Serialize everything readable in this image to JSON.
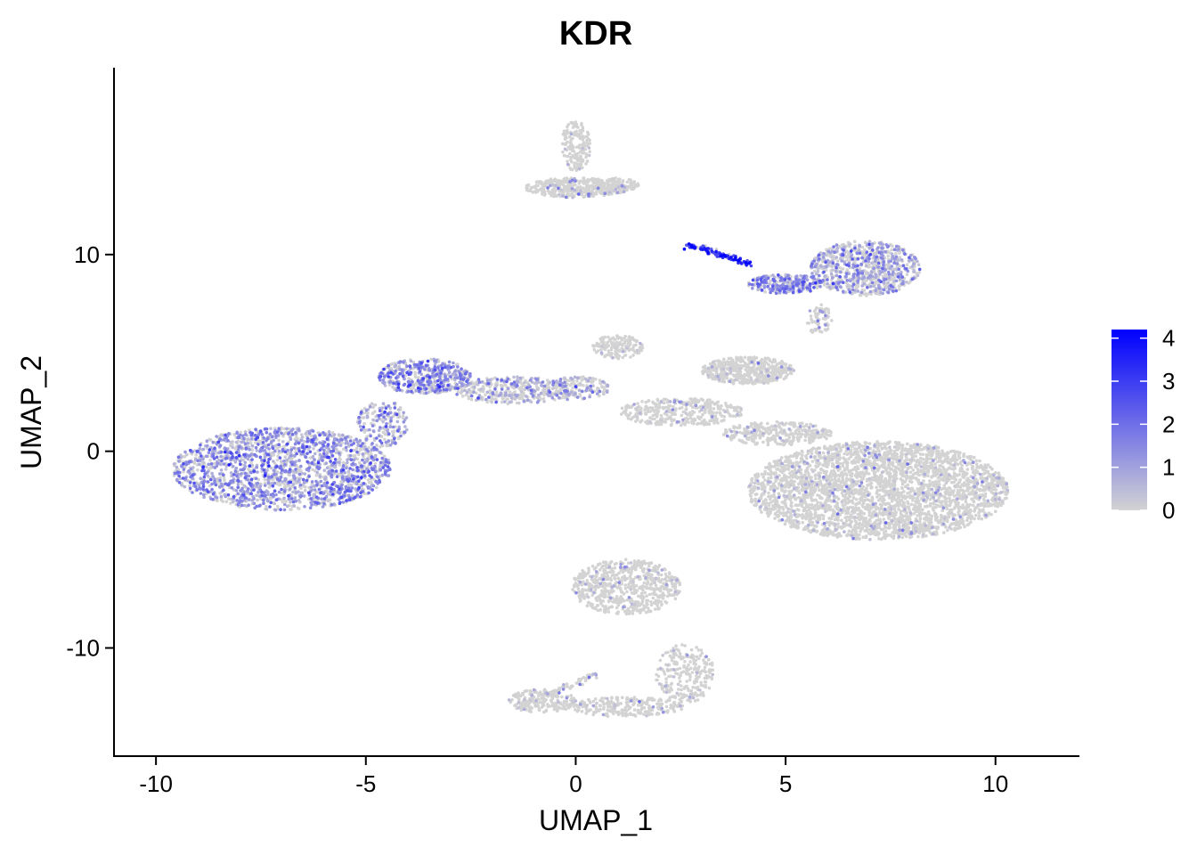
{
  "chart_data": {
    "type": "scatter",
    "title": "KDR",
    "xlabel": "UMAP_1",
    "ylabel": "UMAP_2",
    "xlim": [
      -11,
      12
    ],
    "ylim": [
      -15.5,
      19.5
    ],
    "x_ticks": [
      -10,
      -5,
      0,
      5,
      10
    ],
    "x_tick_labels": [
      "-10",
      "-5",
      "0",
      "5",
      "10"
    ],
    "y_ticks": [
      -10,
      0,
      10
    ],
    "y_tick_labels": [
      "-10",
      "0",
      "10"
    ],
    "grid": false,
    "legend_position": "right",
    "color_scale": {
      "min": 0,
      "max": 4.2,
      "low_color": "#d3d3d3",
      "high_color": "#0000ff",
      "ticks": [
        0,
        1,
        2,
        3,
        4
      ],
      "tick_labels": [
        "0",
        "1",
        "2",
        "3",
        "4"
      ]
    },
    "clusters": [
      {
        "cx": -7.0,
        "cy": -0.9,
        "rx": 2.6,
        "ry": 2.1,
        "n": 1900,
        "expr_mean": 0.9
      },
      {
        "cx": -3.6,
        "cy": 3.8,
        "rx": 1.1,
        "ry": 0.9,
        "n": 450,
        "expr_mean": 1.0
      },
      {
        "cx": -4.6,
        "cy": 1.4,
        "rx": 0.6,
        "ry": 1.2,
        "n": 180,
        "expr_mean": 0.8
      },
      {
        "cx": -1.5,
        "cy": 3.1,
        "rx": 1.4,
        "ry": 0.7,
        "n": 350,
        "expr_mean": 0.6
      },
      {
        "cx": 0.0,
        "cy": 3.2,
        "rx": 0.8,
        "ry": 0.6,
        "n": 180,
        "expr_mean": 0.5
      },
      {
        "cx": 1.0,
        "cy": 5.3,
        "rx": 0.6,
        "ry": 0.6,
        "n": 150,
        "expr_mean": 0.05
      },
      {
        "cx": 2.5,
        "cy": 2.0,
        "rx": 1.5,
        "ry": 0.7,
        "n": 350,
        "expr_mean": 0.08
      },
      {
        "cx": 4.8,
        "cy": 0.9,
        "rx": 1.3,
        "ry": 0.6,
        "n": 300,
        "expr_mean": 0.05
      },
      {
        "cx": 7.2,
        "cy": -2.0,
        "rx": 3.1,
        "ry": 2.5,
        "n": 3400,
        "expr_mean": 0.05
      },
      {
        "cx": 4.1,
        "cy": 4.1,
        "rx": 1.1,
        "ry": 0.7,
        "n": 500,
        "expr_mean": 0.02
      },
      {
        "cx": 0.0,
        "cy": 15.5,
        "rx": 0.35,
        "ry": 1.3,
        "n": 160,
        "expr_mean": 0.03
      },
      {
        "cx": 0.0,
        "cy": 13.4,
        "rx": 1.2,
        "ry": 0.5,
        "n": 380,
        "expr_mean": 0.04
      },
      {
        "cx": 0.9,
        "cy": 13.5,
        "rx": 0.6,
        "ry": 0.4,
        "n": 120,
        "expr_mean": 0.03
      },
      {
        "cx": 6.9,
        "cy": 9.3,
        "rx": 1.3,
        "ry": 1.4,
        "n": 800,
        "expr_mean": 0.7
      },
      {
        "cx": 5.0,
        "cy": 8.5,
        "rx": 0.9,
        "ry": 0.5,
        "n": 250,
        "expr_mean": 1.1
      },
      {
        "cx": 5.8,
        "cy": 6.7,
        "rx": 0.3,
        "ry": 0.8,
        "n": 70,
        "expr_mean": 0.1
      },
      {
        "cx": 1.2,
        "cy": -6.9,
        "rx": 1.3,
        "ry": 1.4,
        "n": 650,
        "expr_mean": 0.05
      },
      {
        "cx": 2.6,
        "cy": -11.3,
        "rx": 0.7,
        "ry": 1.5,
        "n": 250,
        "expr_mean": 0.05
      },
      {
        "cx": 1.2,
        "cy": -13.0,
        "rx": 1.4,
        "ry": 0.5,
        "n": 250,
        "expr_mean": 0.05
      },
      {
        "cx": -0.8,
        "cy": -12.7,
        "rx": 0.8,
        "ry": 0.6,
        "n": 180,
        "expr_mean": 0.05
      }
    ],
    "trails": [
      {
        "x0": 2.7,
        "y0": 10.5,
        "x1": 4.2,
        "y1": 9.5,
        "n": 120,
        "expr_mean": 2.6
      },
      {
        "x0": -1.3,
        "y0": -13.0,
        "x1": 0.5,
        "y1": -11.3,
        "n": 80,
        "expr_mean": 0.2
      }
    ]
  }
}
